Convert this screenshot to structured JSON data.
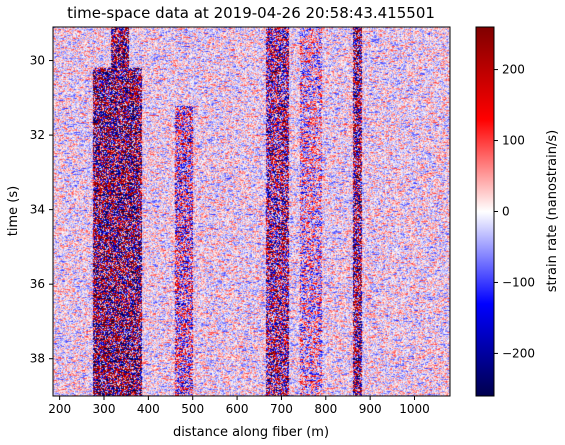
{
  "chart_data": {
    "type": "heatmap",
    "title": "time-space data at 2019-04-26 20:58:43.415501",
    "xlabel": "distance along fiber (m)",
    "ylabel": "time (s)",
    "xlim": [
      185,
      1080
    ],
    "ylim": [
      39.0,
      29.1
    ],
    "y_inverted": true,
    "xticks": [
      200,
      300,
      400,
      500,
      600,
      700,
      800,
      900,
      1000
    ],
    "yticks": [
      30,
      32,
      34,
      36,
      38
    ],
    "colorbar": {
      "label": "strain rate (nanostrain/s)",
      "range": [
        -260,
        260
      ],
      "ticks": [
        -200,
        -100,
        0,
        100,
        200
      ],
      "tick_labels": [
        "−200",
        "−100",
        "0",
        "100",
        "200"
      ],
      "colormap": "seismic",
      "stops": [
        "#00004d",
        "#0000ff",
        "#ffffff",
        "#ff0000",
        "#800000"
      ]
    },
    "vertical_bands": [
      {
        "x_start": 275,
        "x_end": 385,
        "intensity": 1.0,
        "t_start": 30.2
      },
      {
        "x_start": 315,
        "x_end": 355,
        "intensity": 1.0,
        "t_start": 29.1
      },
      {
        "x_start": 460,
        "x_end": 500,
        "intensity": 0.55,
        "t_start": 31.2
      },
      {
        "x_start": 665,
        "x_end": 715,
        "intensity": 0.75,
        "t_start": 29.1
      },
      {
        "x_start": 860,
        "x_end": 880,
        "intensity": 0.85,
        "t_start": 29.1
      },
      {
        "x_start": 740,
        "x_end": 790,
        "intensity": 0.4,
        "t_start": 29.1
      }
    ],
    "background_intensity": 0.22
  }
}
